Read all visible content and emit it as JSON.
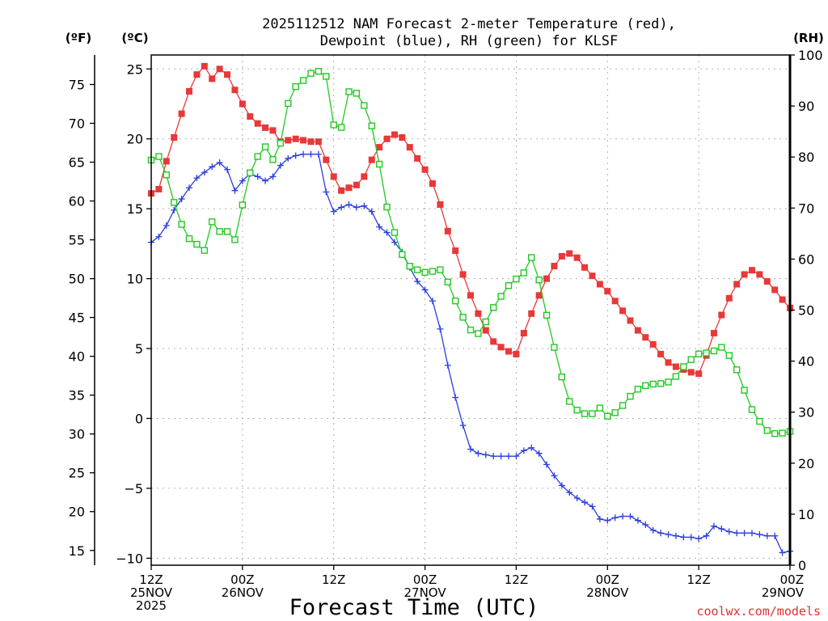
{
  "chart_data": {
    "type": "line",
    "title_lines": [
      "2025112512 NAM Forecast 2-meter Temperature (red),",
      "Dewpoint (blue), RH (green) for KLSF"
    ],
    "xlabel": "Forecast Time (UTC)",
    "credit": "coolwx.com/models",
    "unit_labels": {
      "fahrenheit": "(ºF)",
      "celsius": "(ºC)",
      "rh": "(RH)"
    },
    "x_range_hours": [
      0,
      84
    ],
    "x_ticks": [
      {
        "h": 0,
        "lines": [
          "12Z",
          "25NOV",
          "2025"
        ]
      },
      {
        "h": 12,
        "lines": [
          "00Z",
          "26NOV"
        ]
      },
      {
        "h": 24,
        "lines": [
          "12Z"
        ]
      },
      {
        "h": 36,
        "lines": [
          "00Z",
          "27NOV"
        ]
      },
      {
        "h": 48,
        "lines": [
          "12Z"
        ]
      },
      {
        "h": 60,
        "lines": [
          "00Z",
          "28NOV"
        ]
      },
      {
        "h": 72,
        "lines": [
          "12Z"
        ]
      },
      {
        "h": 84,
        "lines": [
          "00Z",
          "29NOV"
        ]
      }
    ],
    "y_celsius": {
      "range": [
        -10.5,
        26
      ],
      "ticks": [
        -10,
        -5,
        0,
        5,
        10,
        15,
        20,
        25
      ]
    },
    "y_fahrenheit": {
      "ticks": [
        15,
        20,
        25,
        30,
        35,
        40,
        45,
        50,
        55,
        60,
        65,
        70,
        75
      ]
    },
    "y_rh": {
      "range": [
        0,
        100
      ],
      "ticks": [
        0,
        10,
        20,
        30,
        40,
        50,
        60,
        70,
        80,
        90,
        100
      ]
    },
    "x_hours": [
      0,
      1,
      2,
      3,
      4,
      5,
      6,
      7,
      8,
      9,
      10,
      11,
      12,
      13,
      14,
      15,
      16,
      17,
      18,
      19,
      20,
      21,
      22,
      23,
      24,
      25,
      26,
      27,
      28,
      29,
      30,
      31,
      32,
      33,
      34,
      35,
      36,
      37,
      38,
      39,
      40,
      41,
      42,
      43,
      44,
      45,
      46,
      47,
      48,
      49,
      50,
      51,
      52,
      53,
      54,
      55,
      56,
      57,
      58,
      59,
      60,
      61,
      62,
      63,
      64,
      65,
      66,
      67,
      68,
      69,
      70,
      71,
      72,
      73,
      74,
      75,
      76,
      77,
      78,
      79,
      80,
      81,
      82,
      83,
      84
    ],
    "series": [
      {
        "name": "Temperature (°C)",
        "axis": "celsius",
        "color": "#e83838",
        "marker": "filled-square",
        "values": [
          16.1,
          16.4,
          18.4,
          20.1,
          21.8,
          23.4,
          24.6,
          25.2,
          24.3,
          25.0,
          24.6,
          23.5,
          22.5,
          21.6,
          21.1,
          20.8,
          20.6,
          19.8,
          19.9,
          20.0,
          19.9,
          19.8,
          19.8,
          18.5,
          17.3,
          16.3,
          16.5,
          16.7,
          17.3,
          18.5,
          19.4,
          20.0,
          20.3,
          20.1,
          19.4,
          18.6,
          17.8,
          16.8,
          15.3,
          13.4,
          12.0,
          10.3,
          8.8,
          7.5,
          6.3,
          5.5,
          5.1,
          4.8,
          4.6,
          6.1,
          7.5,
          8.8,
          10.0,
          10.9,
          11.6,
          11.8,
          11.5,
          10.8,
          10.2,
          9.6,
          9.1,
          8.4,
          7.7,
          7.0,
          6.3,
          5.8,
          5.3,
          4.6,
          4.0,
          3.7,
          3.5,
          3.3,
          3.2,
          4.5,
          6.1,
          7.4,
          8.6,
          9.6,
          10.3,
          10.6,
          10.3,
          9.8,
          9.2,
          8.5,
          7.9
        ]
      },
      {
        "name": "Dewpoint (°C)",
        "axis": "celsius",
        "color": "#2a3ee0",
        "marker": "plus",
        "values": [
          12.6,
          13.0,
          13.8,
          14.9,
          15.7,
          16.5,
          17.2,
          17.6,
          18.0,
          18.3,
          17.8,
          16.3,
          17.0,
          17.5,
          17.3,
          17.0,
          17.3,
          18.1,
          18.6,
          18.8,
          18.9,
          18.9,
          18.9,
          16.2,
          14.8,
          15.1,
          15.3,
          15.1,
          15.2,
          14.8,
          13.7,
          13.3,
          12.6,
          11.9,
          10.8,
          9.8,
          9.2,
          8.4,
          6.4,
          3.8,
          1.5,
          -0.5,
          -2.2,
          -2.5,
          -2.6,
          -2.7,
          -2.7,
          -2.7,
          -2.7,
          -2.3,
          -2.1,
          -2.5,
          -3.3,
          -4.1,
          -4.8,
          -5.3,
          -5.7,
          -6.0,
          -6.3,
          -7.2,
          -7.3,
          -7.1,
          -7.0,
          -7.0,
          -7.3,
          -7.6,
          -8.0,
          -8.2,
          -8.3,
          -8.4,
          -8.5,
          -8.5,
          -8.6,
          -8.4,
          -7.7,
          -7.9,
          -8.1,
          -8.2,
          -8.2,
          -8.2,
          -8.3,
          -8.4,
          -8.4,
          -9.6,
          -9.5
        ]
      },
      {
        "name": "RH (%)",
        "axis": "rh",
        "color": "#22c822",
        "marker": "open-square",
        "values": [
          79.4,
          80.1,
          76.5,
          71.1,
          66.8,
          64.0,
          62.9,
          61.7,
          67.3,
          65.4,
          65.4,
          63.8,
          70.6,
          76.9,
          80.1,
          82.0,
          79.5,
          82.7,
          90.5,
          93.8,
          95.0,
          96.4,
          96.8,
          95.8,
          86.3,
          85.8,
          92.8,
          92.5,
          90.1,
          86.1,
          78.6,
          70.2,
          65.2,
          60.9,
          58.6,
          57.9,
          57.4,
          57.6,
          57.9,
          55.5,
          51.8,
          48.6,
          46.1,
          45.4,
          47.7,
          50.5,
          52.7,
          54.8,
          56.1,
          57.3,
          60.3,
          55.9,
          49.0,
          42.7,
          36.9,
          32.1,
          30.4,
          29.7,
          29.7,
          30.8,
          29.2,
          29.9,
          31.3,
          33.1,
          34.5,
          35.2,
          35.5,
          35.6,
          35.9,
          37.0,
          38.9,
          40.3,
          41.4,
          41.6,
          42.0,
          42.7,
          41.1,
          38.3,
          34.3,
          30.5,
          28.2,
          26.4,
          25.8,
          25.9,
          26.2
        ]
      }
    ]
  }
}
